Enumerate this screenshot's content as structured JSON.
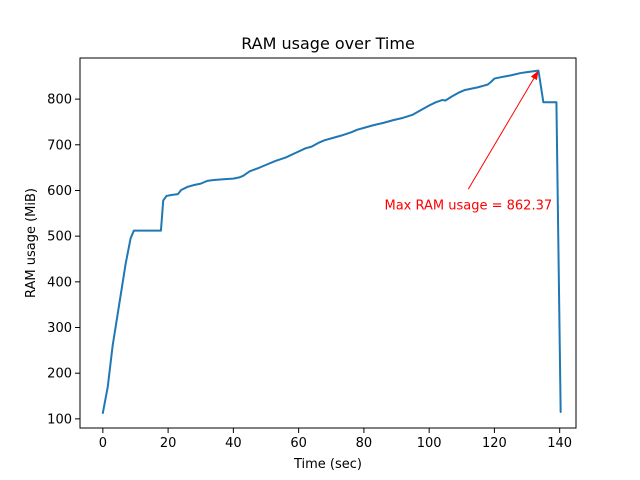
{
  "colors": {
    "line": "#1f77b4",
    "annotation": "#ff0000",
    "axes": "#000000",
    "background": "#ffffff"
  },
  "chart_data": {
    "type": "line",
    "title": "RAM usage over Time",
    "xlabel": "Time (sec)",
    "ylabel": "RAM usage (MiB)",
    "xlim": [
      -7,
      145
    ],
    "ylim": [
      80,
      890
    ],
    "xticks": [
      0,
      20,
      40,
      60,
      80,
      100,
      120,
      140
    ],
    "yticks": [
      100,
      200,
      300,
      400,
      500,
      600,
      700,
      800
    ],
    "grid": false,
    "legend": "none",
    "series": [
      {
        "x": [
          0,
          1.5,
          3,
          5,
          7,
          8.5,
          9.5,
          12,
          15,
          17.8,
          18.5,
          19.5,
          21,
          23,
          24,
          26,
          28,
          30,
          32,
          34,
          36,
          38,
          40,
          42,
          43,
          45,
          48,
          50,
          53,
          56,
          59,
          62,
          64,
          66,
          68,
          70,
          73,
          76,
          78,
          80,
          83,
          86,
          89,
          92,
          95,
          98,
          100,
          102,
          104,
          105,
          107,
          109,
          111,
          113,
          115,
          117,
          118,
          119,
          120,
          122,
          125,
          128,
          130,
          132,
          133.5,
          135,
          137,
          139,
          140.3
        ],
        "y": [
          113,
          170,
          260,
          350,
          440,
          495,
          512,
          512,
          512,
          512,
          578,
          588,
          590,
          592,
          601,
          608,
          612,
          615,
          621,
          623,
          624,
          625,
          626,
          629,
          632,
          642,
          650,
          656,
          665,
          672,
          682,
          692,
          696,
          704,
          710,
          714,
          720,
          727,
          733,
          737,
          743,
          748,
          754,
          759,
          766,
          778,
          786,
          793,
          798,
          797,
          806,
          814,
          820,
          823,
          826,
          830,
          832,
          838,
          845,
          848,
          852,
          857,
          859,
          861,
          862.37,
          793,
          793,
          793,
          115
        ]
      }
    ],
    "annotations": [
      {
        "text": "Max RAM usage = 862.37",
        "point": [
          133.5,
          862.37
        ],
        "text_position": [
          112,
          568
        ]
      }
    ]
  }
}
